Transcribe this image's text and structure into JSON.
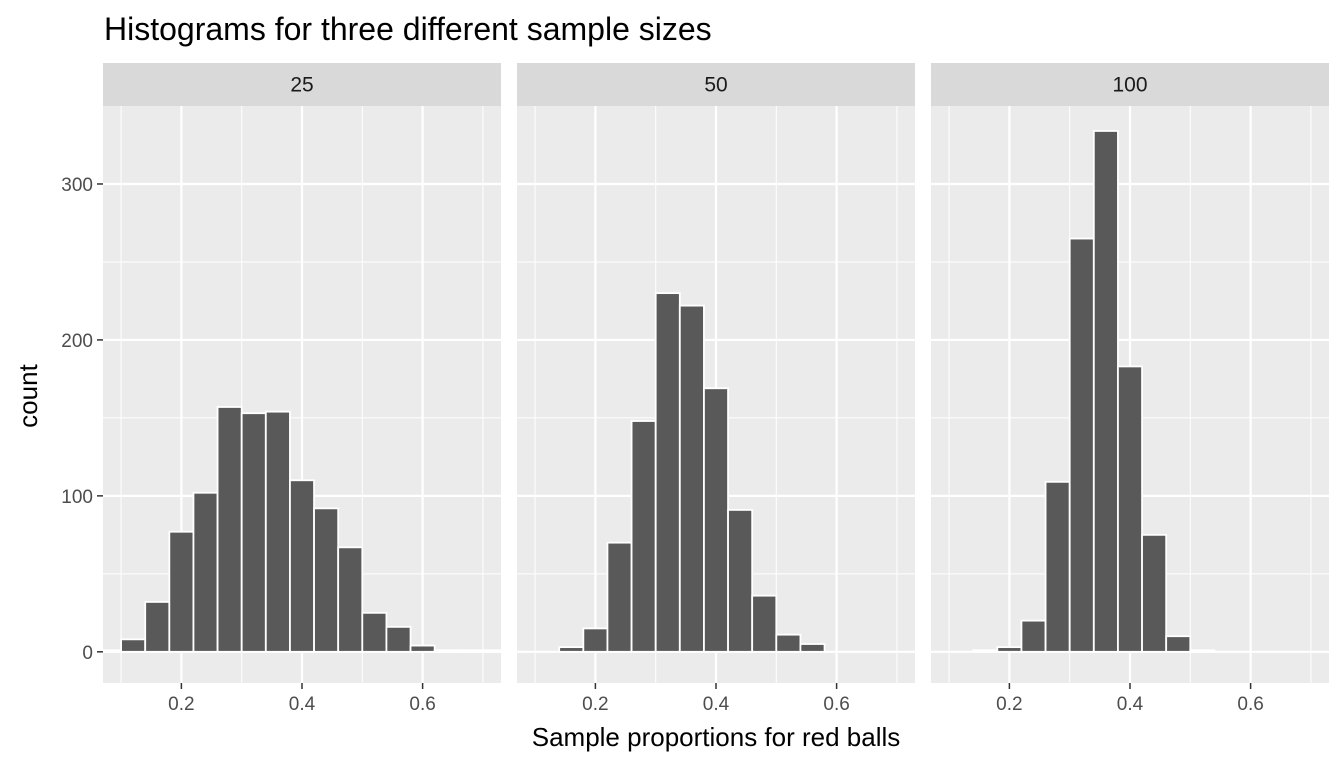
{
  "chart_data": {
    "type": "bar",
    "title": "Histograms for three different sample sizes",
    "xlabel": "Sample proportions for red balls",
    "ylabel": "count",
    "xlim": [
      0.07,
      0.73
    ],
    "ylim": [
      -20,
      350
    ],
    "x_ticks": [
      0.2,
      0.4,
      0.6
    ],
    "x_tick_labels": [
      "0.2",
      "0.4",
      "0.6"
    ],
    "x_minor_ticks": [
      0.1,
      0.3,
      0.5,
      0.7
    ],
    "y_ticks": [
      0,
      100,
      200,
      300
    ],
    "y_tick_labels": [
      "0",
      "100",
      "200",
      "300"
    ],
    "y_minor_ticks": [
      50,
      150,
      250
    ],
    "bin_width": 0.04,
    "grid": true,
    "bar_color": "#595959",
    "bar_outline": "#ffffff",
    "panel_background": "#ebebeb",
    "strip_background": "#d9d9d9",
    "panels": [
      {
        "label": "25",
        "bin_centers": [
          0.08,
          0.12,
          0.16,
          0.2,
          0.24,
          0.28,
          0.32,
          0.36,
          0.4,
          0.44,
          0.48,
          0.52,
          0.56,
          0.6,
          0.64,
          0.68,
          0.72
        ],
        "counts": [
          1,
          8,
          32,
          77,
          102,
          157,
          153,
          154,
          110,
          92,
          67,
          25,
          16,
          4,
          1,
          1,
          1
        ]
      },
      {
        "label": "50",
        "bin_centers": [
          0.16,
          0.2,
          0.24,
          0.28,
          0.32,
          0.36,
          0.4,
          0.44,
          0.48,
          0.52,
          0.56,
          0.6
        ],
        "counts": [
          3,
          15,
          70,
          148,
          230,
          222,
          169,
          91,
          36,
          11,
          5,
          0
        ]
      },
      {
        "label": "100",
        "bin_centers": [
          0.16,
          0.2,
          0.24,
          0.28,
          0.32,
          0.36,
          0.4,
          0.44,
          0.48,
          0.52,
          0.56
        ],
        "counts": [
          1,
          3,
          20,
          109,
          265,
          334,
          183,
          75,
          10,
          1,
          0
        ]
      }
    ]
  }
}
